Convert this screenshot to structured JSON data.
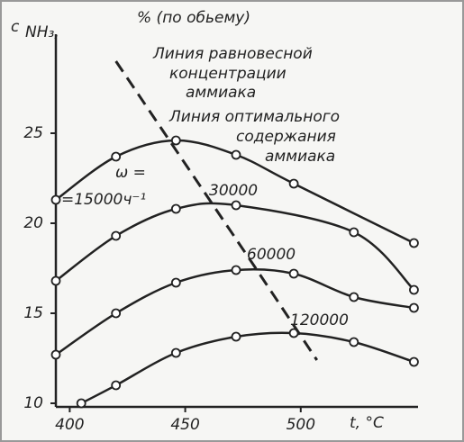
{
  "chart_data": {
    "type": "line",
    "title": "% (по обьему)",
    "y_label": "c",
    "y_label_sub": "NH₃,",
    "x_label": "t, °C",
    "xlim": [
      394,
      550
    ],
    "ylim": [
      9.8,
      30.4
    ],
    "xticks": [
      400,
      450,
      500
    ],
    "yticks": [
      10,
      15,
      20,
      25
    ],
    "grid": false,
    "series": [
      {
        "name": "=15000ч⁻¹",
        "color": "#222222",
        "x": [
          394,
          420,
          446,
          472,
          497,
          549
        ],
        "values": [
          21.3,
          23.7,
          24.6,
          23.8,
          22.2,
          18.9
        ]
      },
      {
        "name": "30000",
        "color": "#222222",
        "x": [
          394,
          420,
          446,
          472,
          523,
          549
        ],
        "values": [
          16.8,
          19.3,
          20.8,
          21.0,
          19.5,
          16.3
        ]
      },
      {
        "name": "60000",
        "color": "#222222",
        "x": [
          394,
          420,
          446,
          472,
          497,
          523,
          549
        ],
        "values": [
          12.7,
          15.0,
          16.7,
          17.4,
          17.2,
          15.9,
          15.3
        ]
      },
      {
        "name": "120000",
        "color": "#222222",
        "x": [
          405,
          420,
          446,
          472,
          497,
          523,
          549
        ],
        "values": [
          10.0,
          11.0,
          12.8,
          13.7,
          13.9,
          13.4,
          12.3
        ]
      }
    ],
    "optimal_line": {
      "x": [
        420,
        440,
        460,
        480,
        507
      ],
      "values": [
        29.0,
        25.2,
        21.4,
        17.6,
        12.4
      ]
    },
    "annotations": [
      "Линия равновесной",
      "концентрации",
      "аммиака",
      "Линия оптимального",
      "содержания",
      "аммиака",
      "ω ="
    ]
  }
}
